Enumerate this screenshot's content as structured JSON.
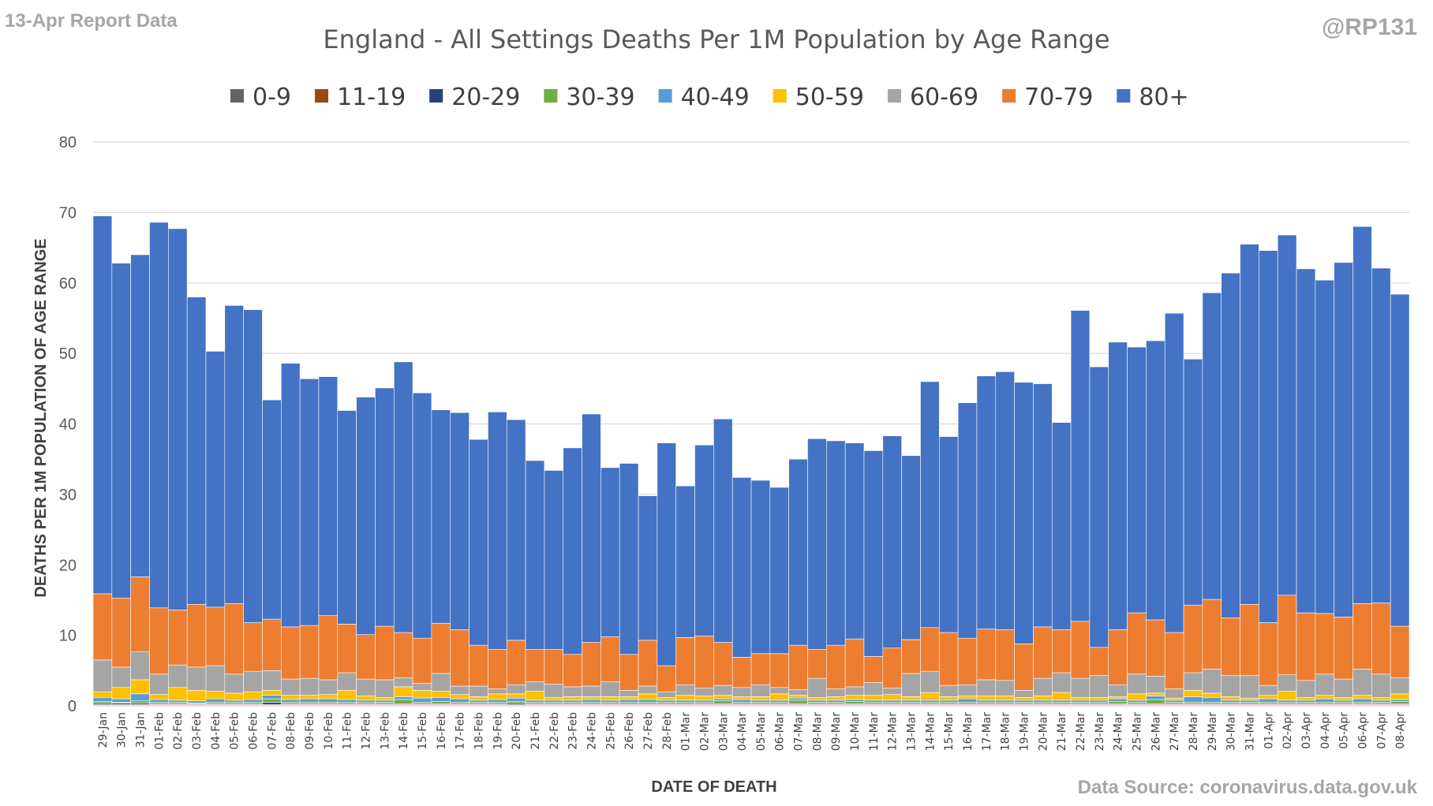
{
  "header": {
    "report_label": "13-Apr Report Data",
    "handle": "@RP131",
    "source": "Data Source: coronavirus.data.gov.uk"
  },
  "chart_data": {
    "type": "bar",
    "stacked": true,
    "title": "England - All Settings Deaths Per 1M Population by Age Range",
    "xlabel": "DATE OF DEATH",
    "ylabel": "DEATHS PER 1M POPULATION OF AGE RANGE",
    "ylim": [
      0,
      80
    ],
    "yticks": [
      0,
      10,
      20,
      30,
      40,
      50,
      60,
      70,
      80
    ],
    "grid": true,
    "legend_position": "top",
    "categories": [
      "29-Jan",
      "30-Jan",
      "31-Jan",
      "01-Feb",
      "02-Feb",
      "03-Feb",
      "04-Feb",
      "05-Feb",
      "06-Feb",
      "07-Feb",
      "08-Feb",
      "09-Feb",
      "10-Feb",
      "11-Feb",
      "12-Feb",
      "13-Feb",
      "14-Feb",
      "15-Feb",
      "16-Feb",
      "17-Feb",
      "18-Feb",
      "19-Feb",
      "20-Feb",
      "21-Feb",
      "22-Feb",
      "23-Feb",
      "24-Feb",
      "25-Feb",
      "26-Feb",
      "27-Feb",
      "28-Feb",
      "01-Mar",
      "02-Mar",
      "03-Mar",
      "04-Mar",
      "05-Mar",
      "06-Mar",
      "07-Mar",
      "08-Mar",
      "09-Mar",
      "10-Mar",
      "11-Mar",
      "12-Mar",
      "13-Mar",
      "14-Mar",
      "15-Mar",
      "16-Mar",
      "17-Mar",
      "18-Mar",
      "19-Mar",
      "20-Mar",
      "21-Mar",
      "22-Mar",
      "23-Mar",
      "24-Mar",
      "25-Mar",
      "26-Mar",
      "27-Mar",
      "28-Mar",
      "29-Mar",
      "30-Mar",
      "31-Mar",
      "01-Apr",
      "02-Apr",
      "03-Apr",
      "04-Apr",
      "05-Apr",
      "06-Apr",
      "07-Apr",
      "08-Apr"
    ],
    "series": [
      {
        "name": "0-9",
        "color": "#636363",
        "values": [
          0.1,
          0.1,
          0.1,
          0.1,
          0.1,
          0.1,
          0.1,
          0.1,
          0.1,
          0.1,
          0.1,
          0.1,
          0.1,
          0.1,
          0.1,
          0.1,
          0.1,
          0.1,
          0.1,
          0.1,
          0.1,
          0.1,
          0.1,
          0.1,
          0.1,
          0.1,
          0.1,
          0.1,
          0.1,
          0.1,
          0.1,
          0.1,
          0.1,
          0.1,
          0.1,
          0.1,
          0.1,
          0.1,
          0.1,
          0.1,
          0.1,
          0.1,
          0.1,
          0.1,
          0.1,
          0.1,
          0.1,
          0.1,
          0.1,
          0.1,
          0.1,
          0.1,
          0.1,
          0.1,
          0.1,
          0.1,
          0.1,
          0.1,
          0.1,
          0.1,
          0.1,
          0.1,
          0.1,
          0.1,
          0.1,
          0.1,
          0.1,
          0.1,
          0.1,
          0.1
        ]
      },
      {
        "name": "11-19",
        "color": "#9e480e",
        "values": [
          0.1,
          0.1,
          0.1,
          0.1,
          0.1,
          0.1,
          0.1,
          0.1,
          0.1,
          0.1,
          0.1,
          0.1,
          0.1,
          0.1,
          0.1,
          0.1,
          0.1,
          0.1,
          0.1,
          0.1,
          0.1,
          0.1,
          0.1,
          0.1,
          0.1,
          0.1,
          0.1,
          0.1,
          0.1,
          0.1,
          0.1,
          0.1,
          0.1,
          0.1,
          0.1,
          0.1,
          0.1,
          0.1,
          0.1,
          0.1,
          0.1,
          0.1,
          0.1,
          0.1,
          0.1,
          0.1,
          0.1,
          0.1,
          0.1,
          0.1,
          0.1,
          0.1,
          0.1,
          0.1,
          0.1,
          0.1,
          0.1,
          0.1,
          0.1,
          0.1,
          0.1,
          0.1,
          0.1,
          0.1,
          0.1,
          0.1,
          0.1,
          0.1,
          0.1,
          0.1
        ]
      },
      {
        "name": "20-29",
        "color": "#264478",
        "values": [
          0.2,
          0.2,
          0.2,
          0.1,
          0.1,
          0.1,
          0.1,
          0.1,
          0.1,
          0.3,
          0.1,
          0.1,
          0.1,
          0.1,
          0.1,
          0.1,
          0.1,
          0.1,
          0.1,
          0.1,
          0.1,
          0.1,
          0.2,
          0.1,
          0.1,
          0.1,
          0.1,
          0.1,
          0.1,
          0.1,
          0.1,
          0.1,
          0.1,
          0.1,
          0.1,
          0.1,
          0.1,
          0.1,
          0.1,
          0.1,
          0.1,
          0.1,
          0.1,
          0.1,
          0.1,
          0.1,
          0.1,
          0.1,
          0.1,
          0.1,
          0.1,
          0.1,
          0.1,
          0.1,
          0.1,
          0.1,
          0.1,
          0.1,
          0.1,
          0.1,
          0.1,
          0.1,
          0.1,
          0.1,
          0.1,
          0.1,
          0.1,
          0.1,
          0.1,
          0.1
        ]
      },
      {
        "name": "30-39",
        "color": "#70ad47",
        "values": [
          0.2,
          0.1,
          0.3,
          0.2,
          0.2,
          0.1,
          0.2,
          0.2,
          0.2,
          0.5,
          0.2,
          0.2,
          0.2,
          0.2,
          0.2,
          0.2,
          0.6,
          0.2,
          0.3,
          0.2,
          0.2,
          0.2,
          0.2,
          0.2,
          0.2,
          0.2,
          0.2,
          0.2,
          0.2,
          0.2,
          0.2,
          0.2,
          0.2,
          0.4,
          0.2,
          0.2,
          0.2,
          0.5,
          0.2,
          0.2,
          0.3,
          0.2,
          0.2,
          0.2,
          0.2,
          0.2,
          0.2,
          0.2,
          0.2,
          0.2,
          0.2,
          0.2,
          0.2,
          0.2,
          0.3,
          0.2,
          0.6,
          0.2,
          0.2,
          0.2,
          0.2,
          0.2,
          0.2,
          0.2,
          0.2,
          0.2,
          0.2,
          0.2,
          0.2,
          0.3
        ]
      },
      {
        "name": "40-49",
        "color": "#5b9bd5",
        "values": [
          0.6,
          0.5,
          1.0,
          0.4,
          0.3,
          0.3,
          0.5,
          0.3,
          0.4,
          0.5,
          0.4,
          0.5,
          0.5,
          0.4,
          0.3,
          0.3,
          0.4,
          0.6,
          0.6,
          0.5,
          0.3,
          0.4,
          0.5,
          0.3,
          0.3,
          0.3,
          0.4,
          0.3,
          0.4,
          0.4,
          0.3,
          0.3,
          0.3,
          0.3,
          0.4,
          0.3,
          0.3,
          0.3,
          0.3,
          0.3,
          0.3,
          0.3,
          0.3,
          0.3,
          0.3,
          0.3,
          0.5,
          0.3,
          0.3,
          0.3,
          0.3,
          0.3,
          0.3,
          0.3,
          0.4,
          0.3,
          0.5,
          0.3,
          0.8,
          0.7,
          0.3,
          0.3,
          0.5,
          0.3,
          0.3,
          0.5,
          0.3,
          0.5,
          0.3,
          0.3
        ]
      },
      {
        "name": "50-59",
        "color": "#ffc000",
        "values": [
          0.8,
          1.6,
          2.0,
          0.7,
          1.8,
          1.5,
          1.1,
          1.0,
          1.1,
          0.7,
          0.6,
          0.5,
          0.6,
          1.3,
          0.6,
          0.4,
          1.4,
          1.1,
          0.9,
          0.6,
          0.5,
          0.8,
          0.6,
          1.3,
          0.4,
          0.5,
          0.4,
          0.5,
          0.4,
          0.8,
          0.4,
          0.7,
          0.6,
          0.5,
          0.4,
          0.5,
          0.9,
          0.4,
          0.4,
          0.5,
          0.6,
          0.7,
          0.8,
          0.5,
          1.1,
          0.5,
          0.4,
          0.6,
          0.6,
          0.4,
          0.6,
          1.1,
          0.4,
          0.4,
          0.3,
          0.9,
          0.4,
          0.3,
          0.9,
          0.6,
          0.5,
          0.3,
          0.5,
          1.3,
          0.4,
          0.5,
          0.4,
          0.5,
          0.4,
          0.8
        ]
      },
      {
        "name": "60-69",
        "color": "#a5a5a5",
        "values": [
          4.5,
          2.9,
          4.0,
          2.9,
          3.2,
          3.3,
          3.6,
          2.7,
          2.9,
          2.8,
          2.3,
          2.4,
          2.1,
          2.5,
          2.4,
          2.5,
          1.3,
          1.0,
          2.5,
          1.2,
          1.5,
          0.7,
          1.3,
          1.3,
          1.9,
          1.4,
          1.5,
          2.1,
          0.9,
          1.1,
          0.8,
          1.5,
          1.1,
          1.4,
          1.3,
          1.7,
          0.9,
          0.8,
          2.7,
          1.1,
          1.2,
          1.8,
          0.9,
          3.3,
          3.0,
          1.6,
          1.6,
          2.3,
          2.2,
          1.0,
          2.5,
          2.8,
          2.7,
          3.1,
          1.7,
          2.8,
          2.4,
          1.3,
          2.5,
          3.4,
          3.0,
          3.2,
          1.4,
          2.3,
          2.4,
          3.0,
          2.6,
          3.7,
          3.3,
          2.3
        ]
      },
      {
        "name": "70-79",
        "color": "#ed7d31",
        "values": [
          9.4,
          9.8,
          10.6,
          9.4,
          7.8,
          8.9,
          8.3,
          10.0,
          6.9,
          7.3,
          7.4,
          7.5,
          9.1,
          6.9,
          6.3,
          7.6,
          6.4,
          6.4,
          7.1,
          8.0,
          5.8,
          5.6,
          6.3,
          4.6,
          4.9,
          4.6,
          6.2,
          6.4,
          5.1,
          6.5,
          3.7,
          6.7,
          7.4,
          6.1,
          4.3,
          4.4,
          4.8,
          6.3,
          4.1,
          6.2,
          6.8,
          3.7,
          5.7,
          4.8,
          6.2,
          7.5,
          6.6,
          7.2,
          7.2,
          6.6,
          7.3,
          6.1,
          8.1,
          4.0,
          7.8,
          8.7,
          8.0,
          8.0,
          9.6,
          9.9,
          8.2,
          10.1,
          8.9,
          11.3,
          9.6,
          8.6,
          8.8,
          9.3,
          10.1,
          7.3
        ]
      },
      {
        "name": "80+",
        "color": "#4472c4",
        "values": [
          53.6,
          47.5,
          45.7,
          54.7,
          54.1,
          43.6,
          36.3,
          42.3,
          44.4,
          31.1,
          37.4,
          35.0,
          33.9,
          30.3,
          33.7,
          33.8,
          38.4,
          34.8,
          30.3,
          30.8,
          29.2,
          33.7,
          31.3,
          26.8,
          25.4,
          29.3,
          32.4,
          24.0,
          27.1,
          20.5,
          31.6,
          21.5,
          27.1,
          31.7,
          25.5,
          24.6,
          23.6,
          26.4,
          29.9,
          29.0,
          27.8,
          29.2,
          30.1,
          26.1,
          34.9,
          27.8,
          33.4,
          35.9,
          36.6,
          37.1,
          34.5,
          29.4,
          44.1,
          39.8,
          40.8,
          37.7,
          39.6,
          45.3,
          34.9,
          43.5,
          48.9,
          51.1,
          52.8,
          51.1,
          48.8,
          47.3,
          50.3,
          53.5,
          47.5,
          47.1
        ]
      }
    ]
  }
}
